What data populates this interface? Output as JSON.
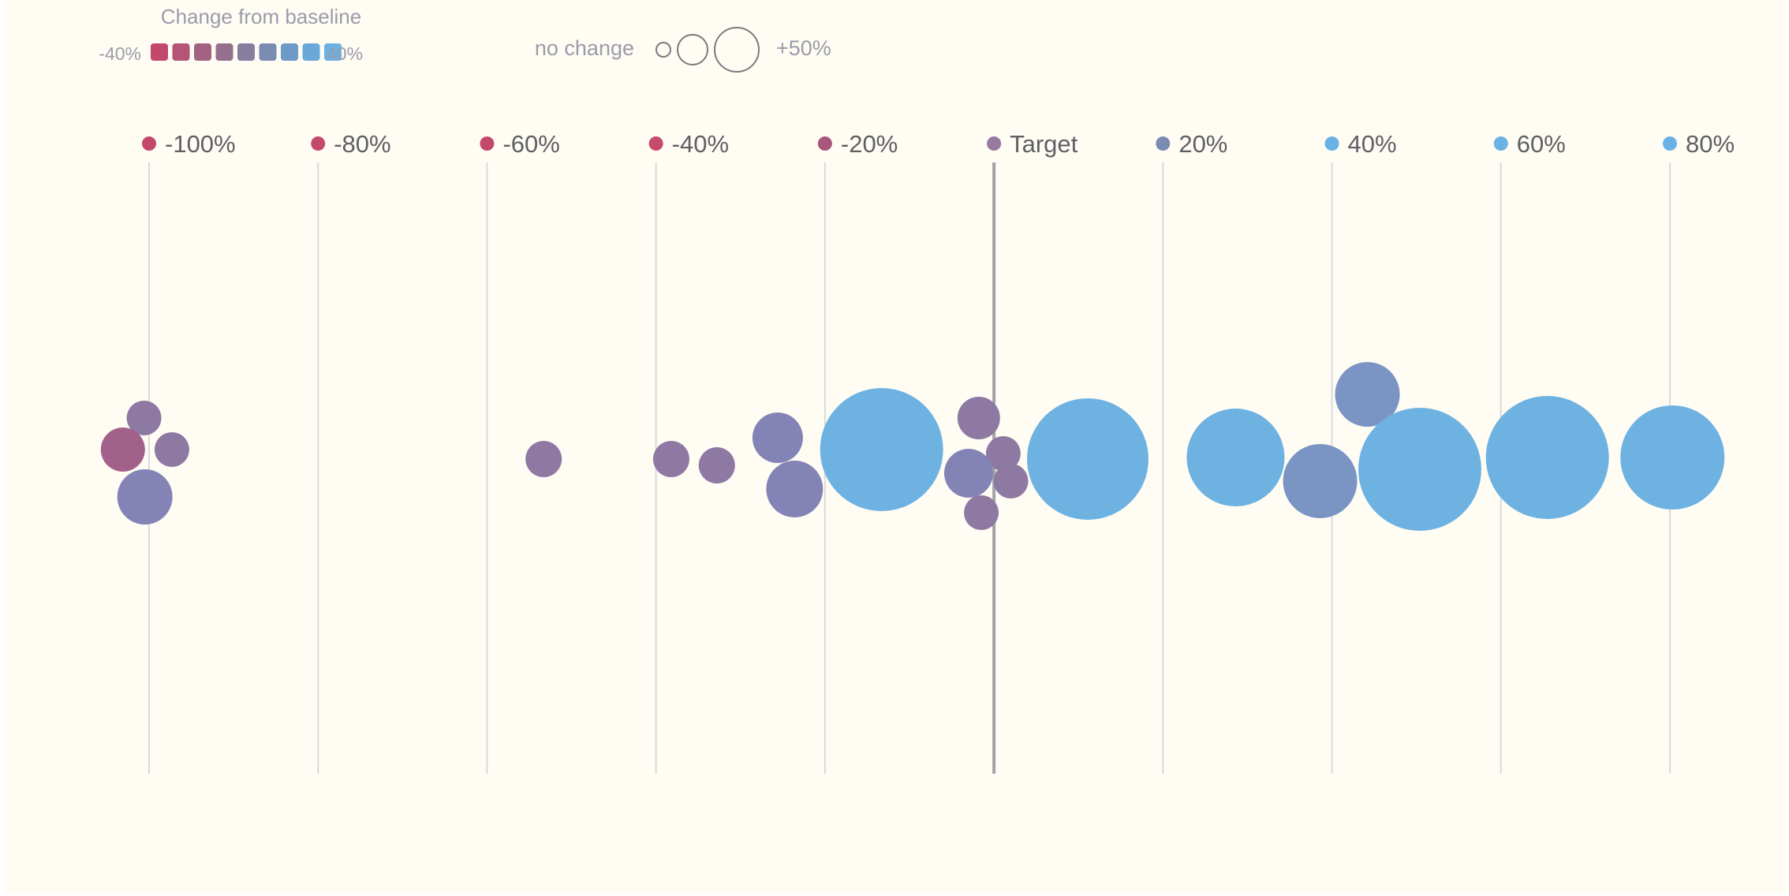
{
  "colors": {
    "background": "#fffcf4",
    "gridline": "#d9dadd",
    "target_line": "#a2a3a7",
    "axis_text": "#5f6064",
    "legend_text": "#9a9ca8",
    "circle_stroke": "#7a7b80"
  },
  "legend": {
    "color_title": "Change from baseline",
    "color_min_label": "-40%",
    "color_max_label": "40%",
    "color_swatches": [
      "#c2496b",
      "#b45476",
      "#a46283",
      "#94708f",
      "#877e9f",
      "#7b8cb3",
      "#6e9ac8",
      "#6aa8da",
      "#6ab2e3"
    ],
    "size_min_label": "no change",
    "size_max_label": "+50%"
  },
  "chart_data": {
    "type": "scatter",
    "title": "",
    "xlabel": "",
    "ylabel": "",
    "xlim": [
      -100,
      80
    ],
    "target_value": 0,
    "ticks": [
      {
        "value": -100,
        "label": "-100%",
        "color": "#c2496b"
      },
      {
        "value": -80,
        "label": "-80%",
        "color": "#c2496b"
      },
      {
        "value": -60,
        "label": "-60%",
        "color": "#c2496b"
      },
      {
        "value": -40,
        "label": "-40%",
        "color": "#c54a6c"
      },
      {
        "value": -20,
        "label": "-20%",
        "color": "#a8567c"
      },
      {
        "value": 0,
        "label": "Target",
        "color": "#977aa0"
      },
      {
        "value": 20,
        "label": "20%",
        "color": "#7b8cb3"
      },
      {
        "value": 40,
        "label": "40%",
        "color": "#6ab2e3"
      },
      {
        "value": 60,
        "label": "60%",
        "color": "#6ab2e3"
      },
      {
        "value": 80,
        "label": "80%",
        "color": "#6ab2e3"
      }
    ],
    "points": [
      {
        "x": -100.6,
        "y": 0.5,
        "r": 22,
        "color": "#8e79a3"
      },
      {
        "x": -97.3,
        "y": 0.1,
        "r": 22,
        "color": "#8e79a3"
      },
      {
        "x": -103.1,
        "y": 0.1,
        "r": 28,
        "color": "#a2618a"
      },
      {
        "x": -100.5,
        "y": -0.5,
        "r": 35,
        "color": "#8384b5"
      },
      {
        "x": -53.3,
        "y": -0.02,
        "r": 23,
        "color": "#8e79a3"
      },
      {
        "x": -38.2,
        "y": -0.02,
        "r": 23,
        "color": "#8e79a3"
      },
      {
        "x": -32.8,
        "y": -0.1,
        "r": 23,
        "color": "#8e79a3"
      },
      {
        "x": -25.6,
        "y": 0.25,
        "r": 32,
        "color": "#8384b5"
      },
      {
        "x": -23.6,
        "y": -0.4,
        "r": 36,
        "color": "#8384b5"
      },
      {
        "x": -13.3,
        "y": 0.1,
        "r": 78,
        "color": "#6eb2e2"
      },
      {
        "x": -1.8,
        "y": 0.5,
        "r": 27,
        "color": "#8e79a3"
      },
      {
        "x": 1.1,
        "y": 0.05,
        "r": 22,
        "color": "#8e79a3"
      },
      {
        "x": -3.0,
        "y": -0.2,
        "r": 31,
        "color": "#8384b5"
      },
      {
        "x": 2.0,
        "y": -0.3,
        "r": 22,
        "color": "#8e79a3"
      },
      {
        "x": -1.5,
        "y": -0.7,
        "r": 22,
        "color": "#8e79a3"
      },
      {
        "x": 11.1,
        "y": -0.02,
        "r": 77,
        "color": "#6eb2e2"
      },
      {
        "x": 28.6,
        "y": 0.0,
        "r": 62,
        "color": "#6eb2e2"
      },
      {
        "x": 38.6,
        "y": -0.3,
        "r": 47,
        "color": "#7a95c3"
      },
      {
        "x": 44.2,
        "y": 0.8,
        "r": 41,
        "color": "#7a95c3"
      },
      {
        "x": 50.4,
        "y": -0.15,
        "r": 78,
        "color": "#6eb2e2"
      },
      {
        "x": 65.5,
        "y": 0.0,
        "r": 78,
        "color": "#6eb2e2"
      },
      {
        "x": 80.3,
        "y": 0.0,
        "r": 66,
        "color": "#6eb2e2"
      }
    ]
  }
}
